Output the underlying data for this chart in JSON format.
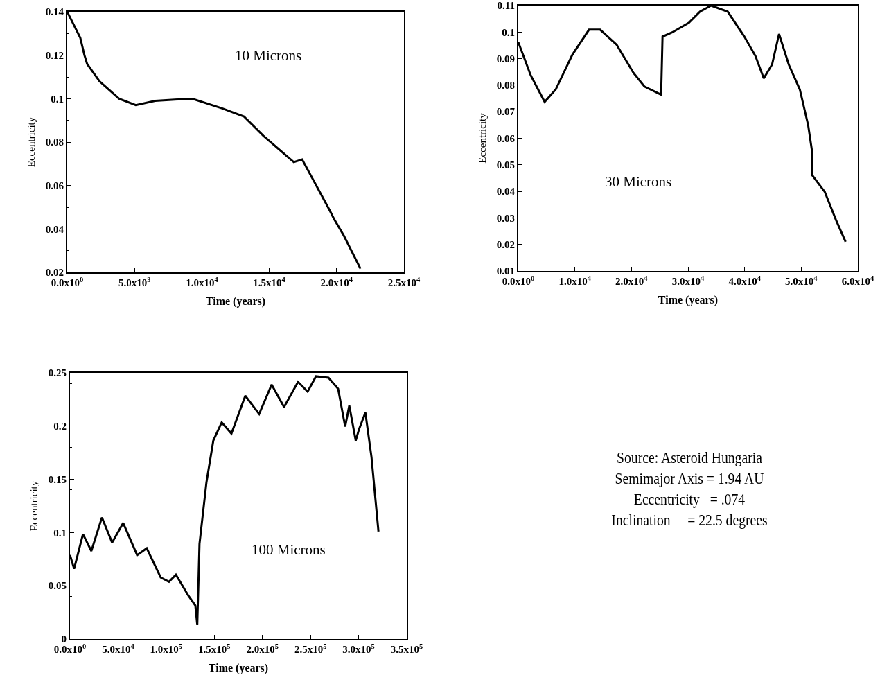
{
  "chart_data": [
    {
      "type": "line",
      "xlabel": "Time (years)",
      "ylabel": "Eccentricity",
      "annotations": [
        "10 Microns"
      ],
      "grid": false,
      "marker": "none",
      "line_style": "solid",
      "xlim": [
        0,
        25000
      ],
      "xticks": [
        {
          "value": 0,
          "label": "0.0x10$^{0}$"
        },
        {
          "value": 5000,
          "label": "5.0x10$^{3}$"
        },
        {
          "value": 10000,
          "label": "1.0x10$^{4}$"
        },
        {
          "value": 15000,
          "label": "1.5x10$^{4}$"
        },
        {
          "value": 20000,
          "label": "2.0x10$^{4}$"
        },
        {
          "value": 25000,
          "label": "2.5x10$^{4}$"
        }
      ],
      "ylim": [
        0.02,
        0.14
      ],
      "yticks": [
        0.02,
        0.04,
        0.06,
        0.08,
        0.1,
        0.12,
        0.14
      ],
      "series": [
        {
          "color": "#000000",
          "x": [
            0,
            970,
            1280,
            1480,
            2400,
            3850,
            5090,
            6530,
            8380,
            9410,
            11470,
            13120,
            14560,
            16000,
            16820,
            17440,
            18270,
            19500,
            19810,
            20530,
            21770
          ],
          "values": [
            0.14,
            0.128,
            0.12,
            0.116,
            0.108,
            0.1,
            0.097,
            0.099,
            0.0997,
            0.0997,
            0.0956,
            0.0918,
            0.0829,
            0.0752,
            0.0708,
            0.072,
            0.0625,
            0.0484,
            0.0446,
            0.037,
            0.0217
          ]
        }
      ]
    },
    {
      "type": "line",
      "xlabel": "Time (years)",
      "ylabel": "Eccentricity",
      "annotations": [
        "30 Microns"
      ],
      "grid": false,
      "marker": "none",
      "line_style": "solid",
      "xlim": [
        0,
        60000
      ],
      "xticks": [
        {
          "value": 0,
          "label": "0.0x10$^{0}$"
        },
        {
          "value": 10000,
          "label": "1.0x10$^{4}$"
        },
        {
          "value": 20000,
          "label": "2.0x10$^{4}$"
        },
        {
          "value": 30000,
          "label": "3.0x10$^{4}$"
        },
        {
          "value": 40000,
          "label": "4.0x10$^{4}$"
        },
        {
          "value": 50000,
          "label": "5.0x10$^{4}$"
        },
        {
          "value": 60000,
          "label": "6.0x10$^{4}$"
        }
      ],
      "ylim": [
        0.01,
        0.11
      ],
      "yticks": [
        0.01,
        0.02,
        0.03,
        0.04,
        0.05,
        0.06,
        0.07,
        0.08,
        0.09,
        0.1,
        0.11
      ],
      "series": [
        {
          "color": "#000000",
          "x": [
            0,
            2200,
            4660,
            6620,
            9560,
            12500,
            14460,
            17400,
            20340,
            22300,
            25240,
            25490,
            27200,
            30150,
            32110,
            34070,
            37010,
            39950,
            41910,
            43380,
            44850,
            46080,
            47790,
            49750,
            51230,
            51960,
            51980,
            54170,
            56130,
            57840
          ],
          "values": [
            0.0962,
            0.0837,
            0.0737,
            0.0784,
            0.0915,
            0.1009,
            0.1009,
            0.0952,
            0.0847,
            0.0795,
            0.0764,
            0.0983,
            0.0999,
            0.1035,
            0.1077,
            0.11,
            0.1077,
            0.0983,
            0.091,
            0.0826,
            0.0878,
            0.0993,
            0.0878,
            0.0784,
            0.0649,
            0.0544,
            0.046,
            0.0398,
            0.0293,
            0.021
          ]
        }
      ]
    },
    {
      "type": "line",
      "xlabel": "Time (years)",
      "ylabel": "Eccentricity",
      "annotations": [
        "100 Microns"
      ],
      "grid": false,
      "marker": "none",
      "line_style": "solid",
      "xlim": [
        0,
        350000
      ],
      "xticks": [
        {
          "value": 0,
          "label": "0.0x10$^{0}$"
        },
        {
          "value": 50000,
          "label": "5.0x10$^{4}$"
        },
        {
          "value": 100000,
          "label": "1.0x10$^{5}$"
        },
        {
          "value": 150000,
          "label": "1.5x10$^{5}$"
        },
        {
          "value": 200000,
          "label": "2.0x10$^{5}$"
        },
        {
          "value": 250000,
          "label": "2.5x10$^{5}$"
        },
        {
          "value": 300000,
          "label": "3.0x10$^{5}$"
        },
        {
          "value": 350000,
          "label": "3.5x10$^{5}$"
        }
      ],
      "ylim": [
        0,
        0.25
      ],
      "yticks": [
        0,
        0.05,
        0.1,
        0.15,
        0.2,
        0.25
      ],
      "series": [
        {
          "color": "#000000",
          "x": [
            0,
            4300,
            13500,
            22200,
            33200,
            43800,
            55300,
            69800,
            79800,
            94300,
            102900,
            110100,
            123100,
            130300,
            132300,
            134600,
            141800,
            149000,
            157700,
            167800,
            182200,
            196600,
            209600,
            222500,
            237000,
            247000,
            255700,
            268700,
            278700,
            286000,
            290300,
            297000,
            300400,
            307000,
            313400,
            320600
          ],
          "values": [
            0.079,
            0.066,
            0.0985,
            0.0827,
            0.1142,
            0.0906,
            0.109,
            0.0788,
            0.0853,
            0.0578,
            0.0538,
            0.0604,
            0.0407,
            0.0315,
            0.0131,
            0.0893,
            0.147,
            0.1865,
            0.2035,
            0.193,
            0.2285,
            0.2114,
            0.239,
            0.218,
            0.2416,
            0.2324,
            0.2468,
            0.2455,
            0.235,
            0.1996,
            0.2193,
            0.1864,
            0.197,
            0.2127,
            0.1707,
            0.101
          ]
        }
      ]
    },
    {
      "type": "other",
      "annotations": [
        "Source: Asteroid Hungaria",
        "Semimajor Axis = 1.94 AU",
        "Eccentricity   = .074",
        "Inclination     = 22.5 degrees"
      ]
    }
  ]
}
